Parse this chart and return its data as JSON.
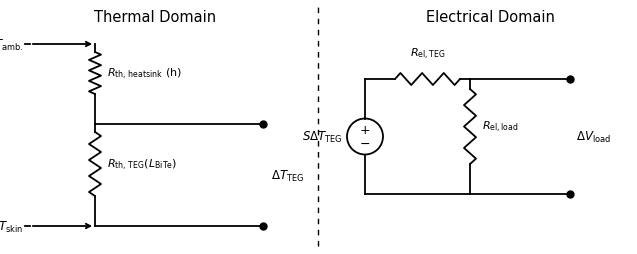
{
  "title_thermal": "Thermal Domain",
  "title_electrical": "Electrical Domain",
  "bg_color": "#ffffff",
  "line_color": "#000000",
  "text_color": "#000000",
  "figsize": [
    6.37,
    2.55
  ],
  "dpi": 100
}
